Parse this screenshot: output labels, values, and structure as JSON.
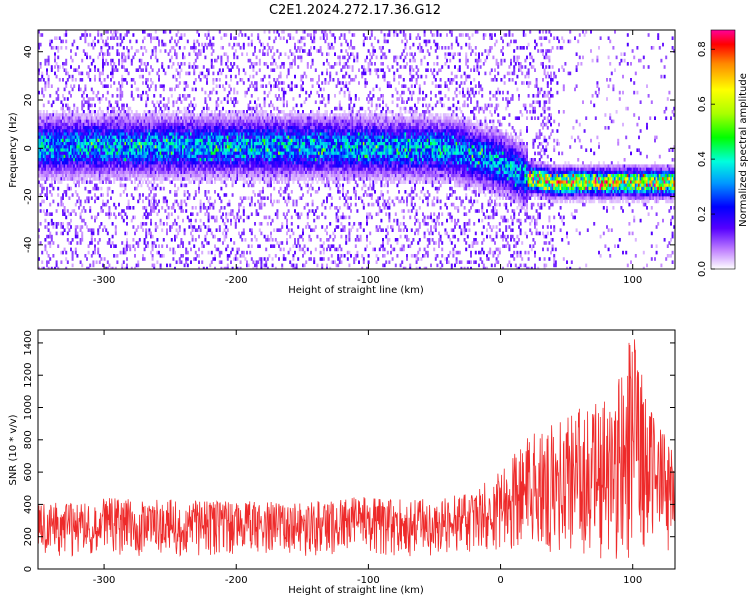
{
  "title": "C2E1.2024.272.17.36.G12",
  "chart_data": [
    {
      "type": "heatmap",
      "xlabel": "Height of straight line (km)",
      "ylabel": "Frequency (Hz)",
      "xlim": [
        -350,
        132
      ],
      "ylim": [
        -50,
        49
      ],
      "xticks": [
        -300,
        -200,
        -100,
        0,
        100
      ],
      "yticks": [
        -40,
        -20,
        0,
        20,
        40
      ],
      "colorbar": {
        "label": "Normalized spectral amplitude",
        "range": [
          0.0,
          0.87
        ],
        "ticks": [
          0.0,
          0.2,
          0.4,
          0.6,
          0.8
        ],
        "tick_labels": [
          "0.0",
          "0.2",
          "0.4",
          "0.6",
          "0.8"
        ]
      },
      "center_line": [
        {
          "x": -350,
          "y": 1
        },
        {
          "x": -150,
          "y": 1
        },
        {
          "x": -40,
          "y": 0
        },
        {
          "x": 0,
          "y": -6
        },
        {
          "x": 20,
          "y": -12
        },
        {
          "x": 40,
          "y": -14
        },
        {
          "x": 132,
          "y": -14
        }
      ]
    },
    {
      "type": "line",
      "xlabel": "Height of straight line (km)",
      "ylabel": "SNR (10 * v/v)",
      "xlim": [
        -350,
        132
      ],
      "ylim": [
        0,
        1480
      ],
      "xticks": [
        -300,
        -200,
        -100,
        0,
        100
      ],
      "yticks": [
        0,
        200,
        400,
        600,
        800,
        1000,
        1200,
        1400
      ],
      "color": "#ee2a2a",
      "envelope": [
        {
          "x": -350,
          "lo": 80,
          "hi": 400
        },
        {
          "x": -300,
          "lo": 80,
          "hi": 440
        },
        {
          "x": -250,
          "lo": 80,
          "hi": 430
        },
        {
          "x": -200,
          "lo": 80,
          "hi": 420
        },
        {
          "x": -150,
          "lo": 80,
          "hi": 420
        },
        {
          "x": -100,
          "lo": 80,
          "hi": 450
        },
        {
          "x": -50,
          "lo": 80,
          "hi": 430
        },
        {
          "x": -20,
          "lo": 90,
          "hi": 480
        },
        {
          "x": 0,
          "lo": 100,
          "hi": 620
        },
        {
          "x": 20,
          "lo": 120,
          "hi": 820
        },
        {
          "x": 40,
          "lo": 100,
          "hi": 900
        },
        {
          "x": 60,
          "lo": 80,
          "hi": 1000
        },
        {
          "x": 80,
          "lo": 60,
          "hi": 1050
        },
        {
          "x": 100,
          "lo": 60,
          "hi": 1480
        },
        {
          "x": 115,
          "lo": 80,
          "hi": 1000
        },
        {
          "x": 132,
          "lo": 120,
          "hi": 700
        }
      ]
    }
  ]
}
